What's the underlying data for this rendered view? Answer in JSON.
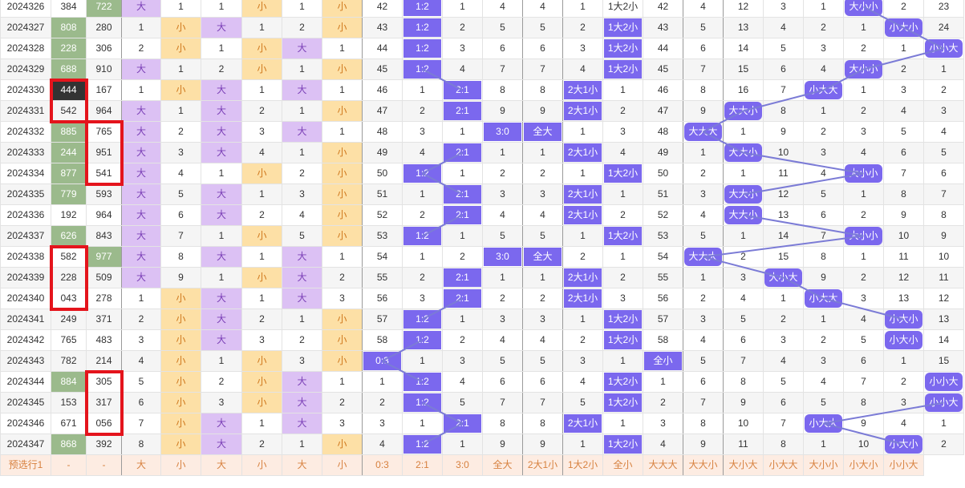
{
  "columns": 24,
  "rows": [
    {
      "id": "2024326",
      "n1": "384",
      "n2": "722",
      "c": [
        "大",
        "1",
        "1",
        "小",
        "1",
        "小",
        "42",
        "1:2",
        "1",
        "4",
        "4",
        "1",
        "1大2小",
        "42",
        "4",
        "12",
        "3",
        "1",
        "大小小",
        "2",
        "23"
      ],
      "hl": {
        "n2": "g"
      },
      "cls": {
        "c0": "purp",
        "c3": "yell",
        "c5": "yell"
      },
      "hit": {
        "7": "r",
        "18": "r"
      }
    },
    {
      "id": "2024327",
      "n1": "808",
      "n2": "280",
      "c": [
        "1",
        "小",
        "大",
        "1",
        "2",
        "小",
        "43",
        "1:2",
        "2",
        "5",
        "5",
        "2",
        "1大2小",
        "43",
        "5",
        "13",
        "4",
        "2",
        "1",
        "小大小",
        "24"
      ],
      "hl": {
        "n1": "g"
      },
      "cls": {
        "c1": "yell",
        "c2": "purp",
        "c5": "yell"
      },
      "hit": {
        "7": "r",
        "12": "r",
        "19": "r"
      }
    },
    {
      "id": "2024328",
      "n1": "228",
      "n2": "306",
      "c": [
        "2",
        "小",
        "1",
        "小",
        "大",
        "1",
        "44",
        "1:2",
        "3",
        "6",
        "6",
        "3",
        "1大2小",
        "44",
        "6",
        "14",
        "5",
        "3",
        "2",
        "1",
        "小小大"
      ],
      "hl": {
        "n1": "g"
      },
      "cls": {
        "c1": "yell",
        "c3": "yell",
        "c4": "purp"
      },
      "hit": {
        "7": "r",
        "12": "r",
        "20": "r"
      }
    },
    {
      "id": "2024329",
      "n1": "688",
      "n2": "910",
      "c": [
        "大",
        "1",
        "2",
        "小",
        "1",
        "小",
        "45",
        "1:2",
        "4",
        "7",
        "7",
        "4",
        "1大2小",
        "45",
        "7",
        "15",
        "6",
        "4",
        "大小小",
        "2",
        "1"
      ],
      "hl": {
        "n1": "g"
      },
      "cls": {
        "c0": "purp",
        "c3": "yell",
        "c5": "yell"
      },
      "hit": {
        "7": "r",
        "12": "r",
        "18": "r"
      }
    },
    {
      "id": "2024330",
      "n1": "444",
      "n2": "167",
      "c": [
        "1",
        "小",
        "大",
        "1",
        "大",
        "1",
        "46",
        "1",
        "2:1",
        "8",
        "8",
        "2大1小",
        "1",
        "46",
        "8",
        "16",
        "7",
        "小大大",
        "1",
        "3",
        "2"
      ],
      "hl": {
        "n1": "d"
      },
      "cls": {
        "c1": "yell",
        "c2": "purp",
        "c4": "purp"
      },
      "hit": {
        "8": "r",
        "11": "r",
        "17": "r"
      },
      "grp": true
    },
    {
      "id": "2024331",
      "n1": "542",
      "n2": "964",
      "c": [
        "大",
        "1",
        "大",
        "2",
        "1",
        "小",
        "47",
        "2",
        "2:1",
        "9",
        "9",
        "2大1小",
        "2",
        "47",
        "9",
        "大大小",
        "8",
        "1",
        "2",
        "4",
        "3"
      ],
      "hl": {},
      "cls": {
        "c0": "purp",
        "c2": "purp",
        "c5": "yell"
      },
      "hit": {
        "8": "r",
        "11": "r",
        "15": "r"
      }
    },
    {
      "id": "2024332",
      "n1": "885",
      "n2": "765",
      "c": [
        "大",
        "2",
        "大",
        "3",
        "大",
        "1",
        "48",
        "3",
        "1",
        "3:0",
        "全大",
        "1",
        "3",
        "48",
        "大大大",
        "1",
        "9",
        "2",
        "3",
        "5",
        "4"
      ],
      "hl": {
        "n1": "g"
      },
      "cls": {
        "c0": "purp",
        "c2": "purp",
        "c4": "purp"
      },
      "hit": {
        "9": "r",
        "10": "r",
        "14": "r"
      }
    },
    {
      "id": "2024333",
      "n1": "244",
      "n2": "951",
      "c": [
        "大",
        "3",
        "大",
        "4",
        "1",
        "小",
        "49",
        "4",
        "2:1",
        "1",
        "1",
        "2大1小",
        "4",
        "49",
        "1",
        "大大小",
        "10",
        "3",
        "4",
        "6",
        "5"
      ],
      "hl": {
        "n1": "g"
      },
      "cls": {
        "c0": "purp",
        "c2": "purp",
        "c5": "yell"
      },
      "hit": {
        "8": "r",
        "11": "r",
        "15": "r"
      },
      "grp": true
    },
    {
      "id": "2024334",
      "n1": "877",
      "n2": "541",
      "c": [
        "大",
        "4",
        "1",
        "小",
        "2",
        "小",
        "50",
        "1:2",
        "1",
        "2",
        "2",
        "1",
        "1大2小",
        "50",
        "2",
        "1",
        "11",
        "4",
        "大小小",
        "7",
        "6"
      ],
      "hl": {
        "n1": "g"
      },
      "cls": {
        "c0": "purp",
        "c3": "yell",
        "c5": "yell"
      },
      "hit": {
        "7": "r",
        "12": "r",
        "18": "r"
      }
    },
    {
      "id": "2024335",
      "n1": "779",
      "n2": "593",
      "c": [
        "大",
        "5",
        "大",
        "1",
        "3",
        "小",
        "51",
        "1",
        "2:1",
        "3",
        "3",
        "2大1小",
        "1",
        "51",
        "3",
        "大大小",
        "12",
        "5",
        "1",
        "8",
        "7"
      ],
      "hl": {
        "n1": "g"
      },
      "cls": {
        "c0": "purp",
        "c2": "purp",
        "c5": "yell"
      },
      "hit": {
        "8": "r",
        "11": "r",
        "15": "r"
      }
    },
    {
      "id": "2024336",
      "n1": "192",
      "n2": "964",
      "c": [
        "大",
        "6",
        "大",
        "2",
        "4",
        "小",
        "52",
        "2",
        "2:1",
        "4",
        "4",
        "2大1小",
        "2",
        "52",
        "4",
        "大大小",
        "13",
        "6",
        "2",
        "9",
        "8"
      ],
      "hl": {},
      "cls": {
        "c0": "purp",
        "c2": "purp",
        "c5": "yell"
      },
      "hit": {
        "8": "r",
        "11": "r",
        "15": "r"
      }
    },
    {
      "id": "2024337",
      "n1": "626",
      "n2": "843",
      "c": [
        "大",
        "7",
        "1",
        "小",
        "5",
        "小",
        "53",
        "1:2",
        "1",
        "5",
        "5",
        "1",
        "1大2小",
        "53",
        "5",
        "1",
        "14",
        "7",
        "大小小",
        "10",
        "9"
      ],
      "hl": {
        "n1": "g"
      },
      "cls": {
        "c0": "purp",
        "c3": "yell",
        "c5": "yell"
      },
      "hit": {
        "7": "r",
        "12": "r",
        "18": "r"
      }
    },
    {
      "id": "2024338",
      "n1": "582",
      "n2": "977",
      "c": [
        "大",
        "8",
        "大",
        "1",
        "大",
        "1",
        "54",
        "1",
        "2",
        "3:0",
        "全大",
        "2",
        "1",
        "54",
        "大大大",
        "2",
        "15",
        "8",
        "1",
        "11",
        "10"
      ],
      "hl": {
        "n2": "g"
      },
      "cls": {
        "c0": "purp",
        "c2": "purp",
        "c4": "purp"
      },
      "hit": {
        "9": "r",
        "10": "r",
        "14": "r"
      },
      "grp": true
    },
    {
      "id": "2024339",
      "n1": "228",
      "n2": "509",
      "c": [
        "大",
        "9",
        "1",
        "小",
        "大",
        "2",
        "55",
        "2",
        "2:1",
        "1",
        "1",
        "2大1小",
        "2",
        "55",
        "1",
        "3",
        "大小大",
        "9",
        "2",
        "12",
        "11"
      ],
      "hl": {},
      "cls": {
        "c0": "purp",
        "c3": "yell",
        "c4": "purp"
      },
      "hit": {
        "8": "r",
        "11": "r",
        "16": "r"
      }
    },
    {
      "id": "2024340",
      "n1": "043",
      "n2": "278",
      "c": [
        "1",
        "小",
        "大",
        "1",
        "大",
        "3",
        "56",
        "3",
        "2:1",
        "2",
        "2",
        "2大1小",
        "3",
        "56",
        "2",
        "4",
        "1",
        "小大大",
        "3",
        "13",
        "12"
      ],
      "hl": {},
      "cls": {
        "c1": "yell",
        "c2": "purp",
        "c4": "purp"
      },
      "hit": {
        "8": "r",
        "11": "r",
        "17": "r"
      }
    },
    {
      "id": "2024341",
      "n1": "249",
      "n2": "371",
      "c": [
        "2",
        "小",
        "大",
        "2",
        "1",
        "小",
        "57",
        "1:2",
        "1",
        "3",
        "3",
        "1",
        "1大2小",
        "57",
        "3",
        "5",
        "2",
        "1",
        "4",
        "小大小",
        "13"
      ],
      "hl": {},
      "cls": {
        "c1": "yell",
        "c2": "purp",
        "c5": "yell"
      },
      "hit": {
        "7": "r",
        "12": "r",
        "19": "r"
      },
      "grp": true
    },
    {
      "id": "2024342",
      "n1": "765",
      "n2": "483",
      "c": [
        "3",
        "小",
        "大",
        "3",
        "2",
        "小",
        "58",
        "1:2",
        "2",
        "4",
        "4",
        "2",
        "1大2小",
        "58",
        "4",
        "6",
        "3",
        "2",
        "5",
        "小大小",
        "14"
      ],
      "hl": {},
      "cls": {
        "c1": "yell",
        "c2": "purp",
        "c5": "yell"
      },
      "hit": {
        "7": "r",
        "12": "r",
        "19": "r"
      }
    },
    {
      "id": "2024343",
      "n1": "782",
      "n2": "214",
      "c": [
        "4",
        "小",
        "1",
        "小",
        "3",
        "小",
        "0:3",
        "1",
        "3",
        "5",
        "5",
        "3",
        "1",
        "全小",
        "5",
        "7",
        "4",
        "3",
        "6",
        "1",
        "15"
      ],
      "hl": {},
      "cls": {
        "c1": "yell",
        "c3": "yell",
        "c5": "yell"
      },
      "hit": {
        "6": "r",
        "13": "r"
      },
      "grp": true
    },
    {
      "id": "2024344",
      "n1": "884",
      "n2": "305",
      "c": [
        "5",
        "小",
        "2",
        "小",
        "大",
        "1",
        "1",
        "1:2",
        "4",
        "6",
        "6",
        "4",
        "1大2小",
        "1",
        "6",
        "8",
        "5",
        "4",
        "7",
        "2",
        "小小大"
      ],
      "hl": {
        "n1": "g"
      },
      "cls": {
        "c1": "yell",
        "c3": "yell",
        "c4": "purp"
      },
      "hit": {
        "7": "r",
        "12": "r",
        "20": "r"
      },
      "grp": true
    },
    {
      "id": "2024345",
      "n1": "153",
      "n2": "317",
      "c": [
        "6",
        "小",
        "3",
        "小",
        "大",
        "2",
        "2",
        "1:2",
        "5",
        "7",
        "7",
        "5",
        "1大2小",
        "2",
        "7",
        "9",
        "6",
        "5",
        "8",
        "3",
        "小小大"
      ],
      "hl": {},
      "cls": {
        "c1": "yell",
        "c3": "yell",
        "c4": "purp"
      },
      "hit": {
        "7": "r",
        "12": "r",
        "20": "r"
      }
    },
    {
      "id": "2024346",
      "n1": "671",
      "n2": "056",
      "c": [
        "7",
        "小",
        "大",
        "1",
        "大",
        "3",
        "3",
        "1",
        "2:1",
        "8",
        "8",
        "2大1小",
        "1",
        "3",
        "8",
        "10",
        "7",
        "小大大",
        "9",
        "4",
        "1"
      ],
      "hl": {},
      "cls": {
        "c1": "yell",
        "c2": "purp",
        "c4": "purp"
      },
      "hit": {
        "8": "r",
        "11": "r",
        "17": "r"
      }
    },
    {
      "id": "2024347",
      "n1": "868",
      "n2": "392",
      "c": [
        "8",
        "小",
        "大",
        "2",
        "1",
        "小",
        "4",
        "1:2",
        "1",
        "9",
        "9",
        "1",
        "1大2小",
        "4",
        "9",
        "11",
        "8",
        "1",
        "10",
        "小大小",
        "2"
      ],
      "hl": {
        "n1": "g"
      },
      "cls": {
        "c1": "yell",
        "c2": "purp",
        "c5": "yell"
      },
      "hit": {
        "7": "r",
        "12": "r",
        "19": "r"
      }
    }
  ],
  "preset_row": {
    "label": "预选行1",
    "cells": [
      "-",
      "-",
      "大",
      "小",
      "大",
      "小",
      "大",
      "小",
      "0:3",
      "2:1",
      "3:0",
      "全大",
      "2大1小",
      "1大2小",
      "全小",
      "大大大",
      "大大小",
      "大小大",
      "小大大",
      "大小小",
      "小大小",
      "小小大"
    ]
  },
  "colors": {
    "hit": "#7b68ee",
    "green": "#9bba8c",
    "purple": "#dcc1f4",
    "yellow": "#fde0a6",
    "red_box": "#e4141c",
    "link_line": "#7b7bd6"
  }
}
